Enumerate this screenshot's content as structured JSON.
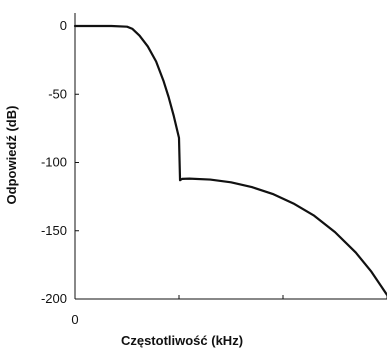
{
  "chart_data": {
    "type": "line",
    "title": "",
    "xlabel": "Częstotliwość (kHz)",
    "ylabel": "Odpowiedź (dB)",
    "xlim": [
      0,
      3
    ],
    "ylim": [
      -200,
      5
    ],
    "yticks": [
      0,
      -50,
      -100,
      -150,
      -200
    ],
    "ytick_labels": [
      "0",
      "-50",
      "-100",
      "-150",
      "-200"
    ],
    "xticks": [
      0,
      1,
      2,
      3
    ],
    "xtick_labels": [
      "0",
      "",
      "",
      ""
    ],
    "grid": false,
    "legend": "none",
    "series": [
      {
        "color": "#111111",
        "x": [
          0,
          0.35,
          0.5,
          0.55,
          0.62,
          0.7,
          0.78,
          0.85,
          0.9,
          0.95,
          1.0,
          1.01,
          1.03,
          1.1,
          1.3,
          1.5,
          1.7,
          1.9,
          2.1,
          2.3,
          2.5,
          2.7,
          2.85,
          3.0
        ],
        "y": [
          0,
          0,
          -0.5,
          -2,
          -7,
          -15,
          -26,
          -40,
          -52,
          -66,
          -82,
          -113,
          -112,
          -111.8,
          -112.5,
          -114.5,
          -118,
          -123,
          -130,
          -139,
          -151,
          -166,
          -180,
          -197
        ]
      }
    ]
  }
}
